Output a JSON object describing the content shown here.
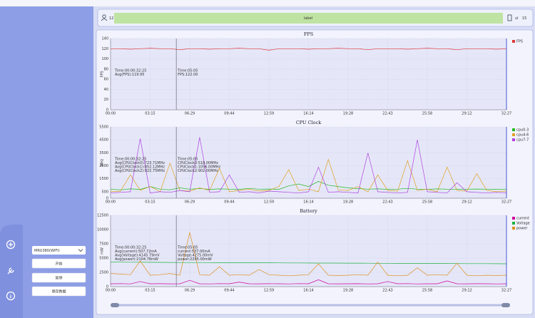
{
  "ui": {
    "header_left": "12",
    "header_label": "label",
    "header_right": [
      "ul",
      "15"
    ],
    "device": "MRU380(WIFI)",
    "buttons": [
      "开始",
      "暂停",
      "保存数据"
    ]
  },
  "chart_data": [
    {
      "type": "line",
      "title": "FPS",
      "ylabel": "FPS",
      "categories": [
        "00:00",
        null,
        null,
        null,
        "03:15",
        null,
        null,
        null,
        "06:29",
        null,
        null,
        null,
        "09:44",
        null,
        null,
        null,
        "12:59",
        null,
        null,
        null,
        "16:14",
        null,
        null,
        null,
        "19:28",
        null,
        null,
        null,
        "22:43",
        null,
        null,
        null,
        "25:58",
        null,
        null,
        null,
        "29:12",
        null,
        null,
        null,
        "32:27"
      ],
      "ylim": [
        0,
        140
      ],
      "yticks": [
        0,
        20,
        40,
        60,
        80,
        100,
        120,
        140
      ],
      "grid": true,
      "legend": "right",
      "series": [
        {
          "name": "FPS",
          "color": "#e03838",
          "values": [
            120,
            120,
            119,
            120,
            121,
            120,
            120,
            118,
            120,
            120,
            119,
            120,
            120,
            121,
            120,
            120,
            117,
            120,
            120,
            120,
            119,
            120,
            120,
            121,
            120,
            120,
            118,
            120,
            120,
            120,
            119,
            120,
            121,
            120,
            120,
            118,
            120,
            120,
            120,
            119,
            120
          ]
        }
      ],
      "annotations": {
        "summary": [
          "Time:00:00:32:25",
          "Avg(FPS):119.95"
        ],
        "cursor": [
          "Time:05:05",
          "FPS:122.00"
        ]
      }
    },
    {
      "type": "line",
      "title": "CPU Clock",
      "ylabel": "MHz",
      "categories": [
        "00:00",
        null,
        null,
        null,
        "03:15",
        null,
        null,
        null,
        "06:29",
        null,
        null,
        null,
        "09:44",
        null,
        null,
        null,
        "12:59",
        null,
        null,
        null,
        "16:14",
        null,
        null,
        null,
        "19:28",
        null,
        null,
        null,
        "22:43",
        null,
        null,
        null,
        "25:58",
        null,
        null,
        null,
        "29:12",
        null,
        null,
        null,
        "32:27"
      ],
      "ylim": [
        0,
        5500
      ],
      "yticks": [
        0,
        500,
        1500,
        2500,
        3500,
        4500,
        5500
      ],
      "grid": true,
      "legend": "right",
      "series": [
        {
          "name": "cpu0-3",
          "color": "#22b822",
          "values": [
            700,
            650,
            720,
            680,
            900,
            700,
            650,
            800,
            700,
            750,
            680,
            720,
            700,
            690,
            760,
            700,
            710,
            680,
            950,
            1100,
            900,
            1300,
            1000,
            900,
            800,
            750,
            700,
            720,
            680,
            700,
            760,
            700,
            680,
            720,
            700,
            690,
            700,
            710,
            700,
            680,
            700
          ]
        },
        {
          "name": "cpu4-6",
          "color": "#e0a020",
          "values": [
            500,
            550,
            1800,
            600,
            900,
            500,
            2700,
            600,
            550,
            800,
            600,
            2300,
            500,
            600,
            700,
            550,
            600,
            900,
            2200,
            600,
            700,
            500,
            3000,
            650,
            600,
            900,
            500,
            1800,
            600,
            550,
            2900,
            600,
            700,
            500,
            2400,
            600,
            550,
            1900,
            600,
            500,
            550
          ]
        },
        {
          "name": "cpu7-7",
          "color": "#b040e0",
          "values": [
            400,
            450,
            500,
            4600,
            400,
            500,
            450,
            600,
            500,
            4700,
            450,
            500,
            1800,
            450,
            500,
            400,
            550,
            500,
            450,
            400,
            500,
            2400,
            450,
            500,
            450,
            400,
            3500,
            500,
            450,
            400,
            450,
            4500,
            500,
            450,
            400,
            1200,
            500,
            450,
            400,
            450,
            400
          ]
        }
      ],
      "annotations": {
        "summary": [
          "Time:00:00:32:25",
          "Avg(CPUClock0):723.71MHz",
          "Avg(CPUClock1):852.12MHz",
          "Avg(CPUClock2):922.75MHz"
        ],
        "cursor": [
          "Time:05:05",
          "CPUClock0:518.00MHz",
          "CPUClock1:1056.00MHz",
          "CPUClock2:902.00MHz"
        ]
      }
    },
    {
      "type": "line",
      "title": "Battery",
      "ylabel": "mW",
      "categories": [
        "00:00",
        null,
        null,
        null,
        "03:15",
        null,
        null,
        null,
        "06:29",
        null,
        null,
        null,
        "09:44",
        null,
        null,
        null,
        "12:59",
        null,
        null,
        null,
        "16:14",
        null,
        null,
        null,
        "19:28",
        null,
        null,
        null,
        "22:43",
        null,
        null,
        null,
        "25:58",
        null,
        null,
        null,
        "29:12",
        null,
        null,
        null,
        "32:27"
      ],
      "ylim": [
        0,
        12500
      ],
      "yticks": [
        0,
        2500,
        5000,
        7500,
        10000,
        12500
      ],
      "grid": true,
      "legend": "right",
      "series": [
        {
          "name": "current",
          "color": "#d000a0",
          "values": [
            500,
            520,
            480,
            900,
            500,
            510,
            490,
            500,
            1100,
            500,
            480,
            520,
            500,
            800,
            500,
            490,
            510,
            500,
            480,
            520,
            500,
            1200,
            500,
            490,
            500,
            510,
            480,
            500,
            900,
            500,
            520,
            480,
            500,
            500,
            1000,
            500,
            490,
            510,
            500,
            480,
            500
          ]
        },
        {
          "name": "Voltage",
          "color": "#20b040",
          "values": [
            4300,
            4290,
            4280,
            4270,
            4260,
            4250,
            4240,
            4230,
            4230,
            4220,
            4210,
            4200,
            4200,
            4190,
            4180,
            4170,
            4170,
            4160,
            4150,
            4150,
            4140,
            4130,
            4130,
            4120,
            4110,
            4110,
            4100,
            4090,
            4090,
            4080,
            4070,
            4070,
            4060,
            4050,
            4050,
            4040,
            4030,
            4030,
            4020,
            4010,
            4000
          ]
        },
        {
          "name": "power",
          "color": "#e09020",
          "values": [
            2300,
            2200,
            2100,
            4500,
            2000,
            2100,
            2300,
            2000,
            9500,
            2100,
            2000,
            3500,
            2000,
            2100,
            2000,
            3000,
            2100,
            2000,
            1900,
            2000,
            2100,
            4000,
            2000,
            1950,
            2000,
            2100,
            2000,
            4300,
            2000,
            1900,
            2000,
            3300,
            2000,
            2100,
            2000,
            4100,
            2000,
            1900,
            2000,
            1950,
            2000
          ]
        }
      ],
      "annotations": {
        "summary": [
          "Time:00:00:32:25",
          "Avg(current):507.72mA",
          "Avg(Voltage):4145.79mV",
          "Avg(power):2104.78mW"
        ],
        "cursor": [
          "Time:05:05",
          "current:537.00mA",
          "Voltage:4275.00mV",
          "power:2295.00mW"
        ]
      }
    }
  ]
}
